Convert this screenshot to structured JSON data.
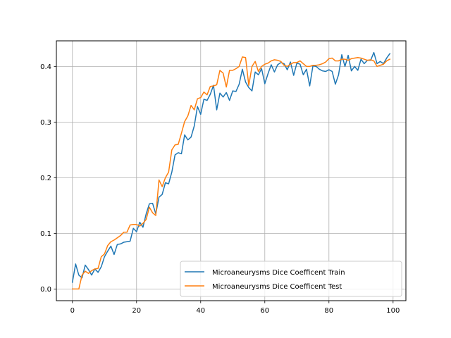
{
  "chart_data": {
    "type": "line",
    "title": "",
    "xlabel": "",
    "ylabel": "",
    "xlim": [
      -5,
      104
    ],
    "ylim": [
      -0.021,
      0.446
    ],
    "xticks": [
      0,
      20,
      40,
      60,
      80,
      100
    ],
    "yticks": [
      0.0,
      0.1,
      0.2,
      0.3,
      0.4
    ],
    "grid": true,
    "legend_position": "lower-right",
    "x": [
      0,
      1,
      2,
      3,
      4,
      5,
      6,
      7,
      8,
      9,
      10,
      11,
      12,
      13,
      14,
      15,
      16,
      17,
      18,
      19,
      20,
      21,
      22,
      23,
      24,
      25,
      26,
      27,
      28,
      29,
      30,
      31,
      32,
      33,
      34,
      35,
      36,
      37,
      38,
      39,
      40,
      41,
      42,
      43,
      44,
      45,
      46,
      47,
      48,
      49,
      50,
      51,
      52,
      53,
      54,
      55,
      56,
      57,
      58,
      59,
      60,
      61,
      62,
      63,
      64,
      65,
      66,
      67,
      68,
      69,
      70,
      71,
      72,
      73,
      74,
      75,
      76,
      77,
      78,
      79,
      80,
      81,
      82,
      83,
      84,
      85,
      86,
      87,
      88,
      89,
      90,
      91,
      92,
      93,
      94,
      95,
      96,
      97,
      98,
      99
    ],
    "series": [
      {
        "name": "Microaneurysms Dice Coefficent Train",
        "color": "#1f77b4",
        "values": [
          0.012,
          0.045,
          0.025,
          0.02,
          0.043,
          0.035,
          0.025,
          0.036,
          0.03,
          0.04,
          0.058,
          0.068,
          0.077,
          0.062,
          0.08,
          0.081,
          0.084,
          0.085,
          0.086,
          0.109,
          0.103,
          0.12,
          0.111,
          0.135,
          0.153,
          0.154,
          0.135,
          0.165,
          0.17,
          0.191,
          0.189,
          0.21,
          0.241,
          0.245,
          0.243,
          0.277,
          0.268,
          0.273,
          0.293,
          0.328,
          0.314,
          0.341,
          0.339,
          0.35,
          0.366,
          0.322,
          0.352,
          0.345,
          0.353,
          0.339,
          0.356,
          0.355,
          0.368,
          0.395,
          0.372,
          0.362,
          0.356,
          0.39,
          0.385,
          0.396,
          0.369,
          0.387,
          0.403,
          0.39,
          0.403,
          0.407,
          0.405,
          0.394,
          0.408,
          0.384,
          0.406,
          0.404,
          0.385,
          0.395,
          0.365,
          0.401,
          0.4,
          0.395,
          0.392,
          0.391,
          0.394,
          0.391,
          0.368,
          0.385,
          0.421,
          0.4,
          0.42,
          0.392,
          0.4,
          0.393,
          0.413,
          0.405,
          0.411,
          0.411,
          0.425,
          0.405,
          0.409,
          0.405,
          0.415,
          0.423
        ]
      },
      {
        "name": "Microaneurysms Dice Coefficent Test",
        "color": "#ff7f0e",
        "values": [
          0.0,
          0.0,
          0.0,
          0.025,
          0.032,
          0.028,
          0.033,
          0.036,
          0.037,
          0.058,
          0.063,
          0.078,
          0.085,
          0.088,
          0.092,
          0.096,
          0.102,
          0.102,
          0.115,
          0.116,
          0.116,
          0.113,
          0.118,
          0.125,
          0.147,
          0.137,
          0.132,
          0.196,
          0.184,
          0.2,
          0.21,
          0.25,
          0.259,
          0.26,
          0.28,
          0.301,
          0.311,
          0.33,
          0.322,
          0.342,
          0.344,
          0.354,
          0.349,
          0.364,
          0.365,
          0.367,
          0.393,
          0.388,
          0.363,
          0.393,
          0.393,
          0.396,
          0.4,
          0.417,
          0.416,
          0.366,
          0.4,
          0.409,
          0.391,
          0.4,
          0.404,
          0.406,
          0.41,
          0.412,
          0.411,
          0.409,
          0.402,
          0.4,
          0.404,
          0.407,
          0.407,
          0.41,
          0.405,
          0.4,
          0.4,
          0.402,
          0.402,
          0.403,
          0.405,
          0.408,
          0.414,
          0.415,
          0.41,
          0.41,
          0.413,
          0.413,
          0.411,
          0.414,
          0.415,
          0.416,
          0.415,
          0.413,
          0.411,
          0.412,
          0.41,
          0.4,
          0.402,
          0.404,
          0.41,
          0.413
        ]
      }
    ]
  }
}
